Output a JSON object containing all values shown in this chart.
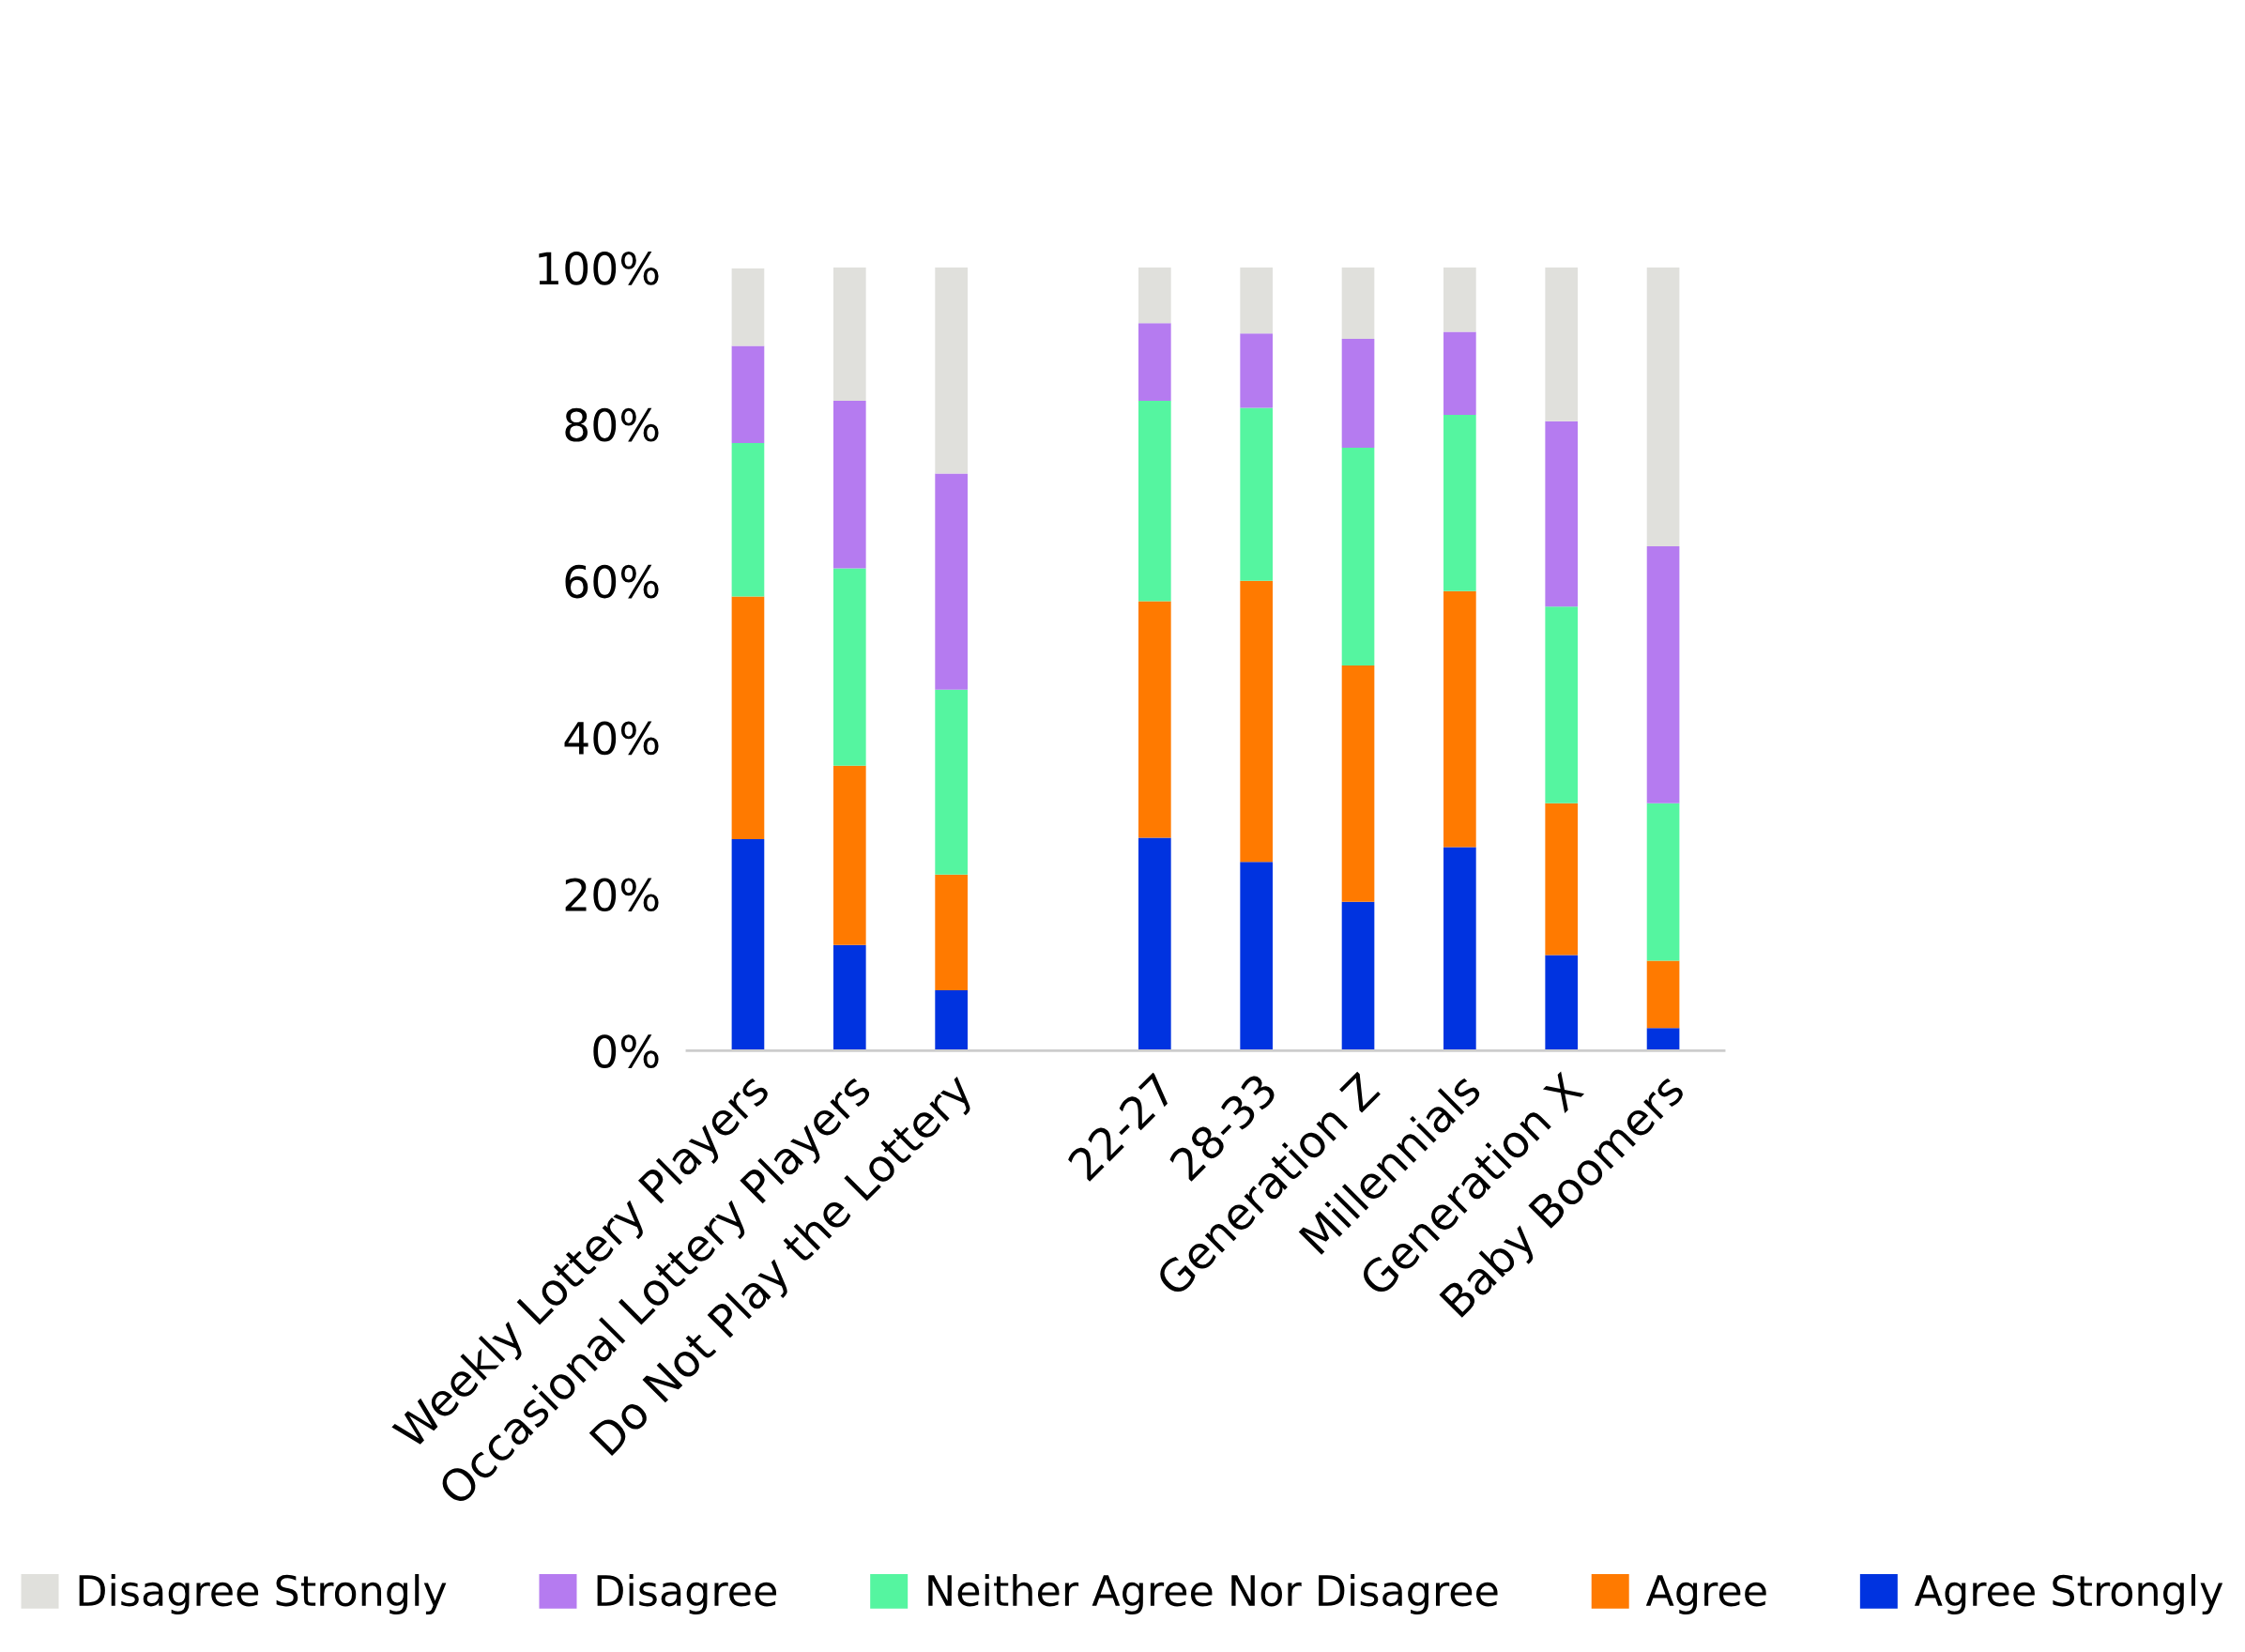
{
  "chart_data": {
    "type": "bar",
    "stacked": true,
    "categories": [
      "Weekly Lottery Players",
      "Occasional Lottery Players",
      "Do Not Play the Lottery",
      null,
      "22-27",
      "28-33",
      "Generation Z",
      "Millennials",
      "Generation X",
      "Baby Boomers"
    ],
    "series": [
      {
        "name": "Agree Strongly",
        "color": "#0033e0",
        "values": [
          27,
          13.5,
          7.7,
          null,
          27.2,
          24.1,
          19,
          26,
          12.2,
          2.9
        ]
      },
      {
        "name": "Agree",
        "color": "#ff7a00",
        "values": [
          31,
          22.9,
          14.8,
          null,
          30.2,
          35.9,
          30.2,
          32.7,
          19.4,
          8.6
        ]
      },
      {
        "name": "Neither Agree Nor Disagree",
        "color": "#55f5a0",
        "values": [
          19.6,
          25.2,
          23.6,
          null,
          25.6,
          22.1,
          27.8,
          22.5,
          25.1,
          20.1
        ]
      },
      {
        "name": "Disagree",
        "color": "#b57bf0",
        "values": [
          12.4,
          21.4,
          27.6,
          null,
          9.9,
          9.5,
          13.9,
          10.6,
          23.7,
          32.8
        ]
      },
      {
        "name": "Disagree Strongly",
        "color": "#e0e0dc",
        "values": [
          9.9,
          17,
          26.3,
          null,
          7.1,
          8.4,
          9.1,
          8.2,
          19.6,
          35.6
        ]
      }
    ],
    "ylim": [
      0,
      100
    ],
    "yticks": [
      {
        "value": 0,
        "label": "0%"
      },
      {
        "value": 20,
        "label": "20%"
      },
      {
        "value": 40,
        "label": "40%"
      },
      {
        "value": 60,
        "label": "60%"
      },
      {
        "value": 80,
        "label": "80%"
      },
      {
        "value": 100,
        "label": "100%"
      }
    ],
    "grid": false,
    "legend": "bottom"
  }
}
